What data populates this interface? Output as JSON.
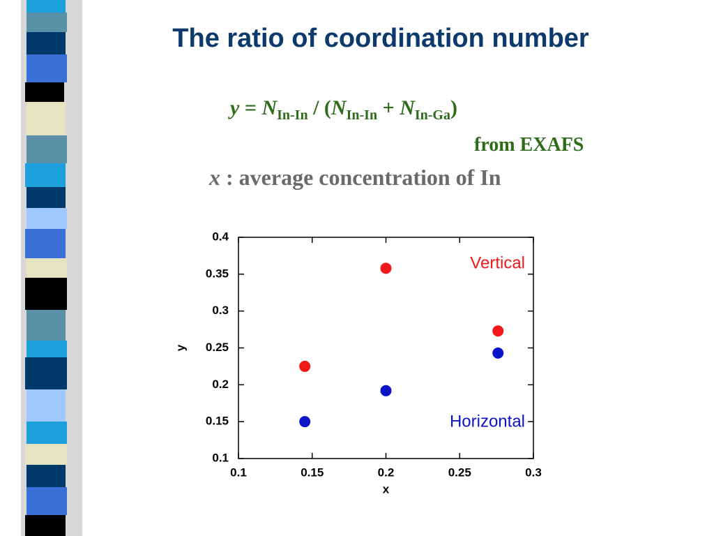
{
  "title": "The ratio of coordination number",
  "formula": [
    "y",
    " = ",
    "N",
    "In-In",
    " / (",
    "N",
    "In-In",
    " + ",
    "N",
    "In-Ga",
    ")"
  ],
  "source": "from EXAFS",
  "definition": [
    "x",
    " : average concentration of In"
  ],
  "chart_data": {
    "type": "scatter",
    "x_label": "x",
    "y_label": "y",
    "xlim": [
      0.1,
      0.3
    ],
    "xticks": [
      0.1,
      0.15,
      0.2,
      0.25,
      0.3
    ],
    "ylim": [
      0.1,
      0.4
    ],
    "yticks": [
      0.1,
      0.15,
      0.2,
      0.25,
      0.3,
      0.35,
      0.4
    ],
    "series": [
      {
        "name": "Vertical",
        "color": "#f01818",
        "x": [
          0.145,
          0.2,
          0.276
        ],
        "values": [
          0.225,
          0.358,
          0.273
        ]
      },
      {
        "name": "Horizontal",
        "color": "#0a14c8",
        "x": [
          0.145,
          0.2,
          0.276
        ],
        "values": [
          0.15,
          0.192,
          0.243
        ]
      }
    ]
  }
}
